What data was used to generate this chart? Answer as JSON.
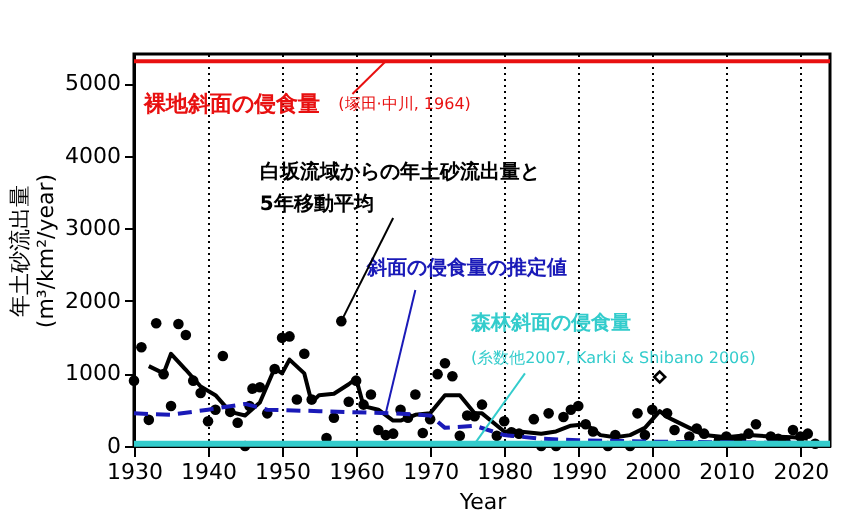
{
  "chart_data": {
    "type": "scatter",
    "xlabel": "Year",
    "ylabel": "年土砂流出量\n(m³/km²/year)",
    "xlim": [
      1930,
      2024
    ],
    "ylim": [
      0,
      5400
    ],
    "xticks": [
      1930,
      1940,
      1950,
      1960,
      1970,
      1980,
      1990,
      2000,
      2010,
      2020
    ],
    "yticks": [
      0,
      1000,
      2000,
      3000,
      4000,
      5000
    ],
    "grid": "x",
    "series": [
      {
        "marker": "circle",
        "color": "#000000",
        "x": [
          1930,
          1931,
          1932,
          1933,
          1934,
          1935,
          1936,
          1937,
          1938,
          1939,
          1940,
          1941,
          1942,
          1943,
          1944,
          1945,
          1945.6,
          1946,
          1947,
          1948,
          1949,
          1950,
          1951,
          1952,
          1953,
          1954,
          1956,
          1957,
          1958,
          1959,
          1960,
          1961,
          1962,
          1963,
          1964,
          1965,
          1966,
          1967,
          1968,
          1969,
          1970,
          1971,
          1972,
          1973,
          1974,
          1975,
          1976,
          1977,
          1979,
          1980,
          1981,
          1982,
          1984,
          1985,
          1986,
          1987,
          1988,
          1989,
          1990,
          1991,
          1992,
          1994,
          1995,
          1997,
          1998,
          1999,
          2000,
          2002,
          2003,
          2005,
          2006,
          2007,
          2009,
          2010,
          2011,
          2012,
          2013,
          2014,
          2016,
          2017,
          2018,
          2019,
          2020,
          2021,
          2022
        ],
        "values": [
          900,
          1360,
          360,
          1690,
          990,
          550,
          1680,
          1530,
          900,
          730,
          340,
          500,
          1240,
          470,
          320,
          0,
          550,
          790,
          810,
          450,
          1060,
          1490,
          1510,
          640,
          1270,
          640,
          110,
          390,
          1720,
          610,
          900,
          570,
          710,
          220,
          150,
          170,
          500,
          390,
          710,
          180,
          370,
          990,
          1140,
          960,
          140,
          420,
          410,
          570,
          140,
          340,
          190,
          170,
          370,
          0,
          450,
          0,
          400,
          500,
          550,
          300,
          200,
          0,
          150,
          0,
          450,
          150,
          500,
          450,
          220,
          130,
          240,
          170,
          80,
          130,
          80,
          100,
          170,
          300,
          130,
          100,
          60,
          220,
          130,
          170,
          30
        ]
      },
      {
        "marker": "diamond",
        "color": "#000000",
        "x": [
          2001
        ],
        "values": [
          950
        ]
      },
      {
        "type": "line",
        "line_style": "solid",
        "color": "#000000",
        "x": [
          1932,
          1934,
          1935,
          1937,
          1939,
          1941,
          1943,
          1945,
          1947,
          1949,
          1950,
          1951,
          1953,
          1954,
          1955,
          1957,
          1959,
          1960,
          1961,
          1963,
          1965,
          1966,
          1968,
          1970,
          1972,
          1974,
          1976,
          1977,
          1980,
          1982,
          1985,
          1987,
          1989,
          1991,
          1993,
          1995,
          1997,
          1999,
          2001,
          2002,
          2003,
          2005,
          2007,
          2010,
          2013,
          2016,
          2019,
          2021
        ],
        "values": [
          1100,
          1000,
          1270,
          1050,
          820,
          700,
          470,
          420,
          600,
          1070,
          1000,
          1190,
          1000,
          600,
          700,
          720,
          850,
          930,
          550,
          500,
          350,
          350,
          430,
          450,
          700,
          700,
          450,
          450,
          200,
          200,
          170,
          200,
          280,
          300,
          150,
          120,
          150,
          250,
          480,
          400,
          350,
          250,
          150,
          120,
          150,
          130,
          120,
          100
        ]
      },
      {
        "type": "line",
        "line_style": "dashed",
        "color": "#1a1ab8",
        "x": [
          1930,
          1935,
          1940,
          1945,
          1948,
          1955,
          1965,
          1970,
          1972,
          1976,
          1980,
          1985,
          1990,
          1995,
          2000,
          2010,
          2022
        ],
        "values": [
          450,
          430,
          500,
          580,
          500,
          480,
          450,
          420,
          250,
          280,
          150,
          100,
          80,
          70,
          60,
          50,
          40
        ]
      },
      {
        "type": "line",
        "line_style": "solid",
        "color": "#33cccc",
        "x": [
          1930,
          2024
        ],
        "values": [
          30,
          30
        ]
      }
    ],
    "ref_lines": [
      {
        "axis": "y",
        "value": 5300,
        "color": "#e81010"
      }
    ],
    "annotations": [
      "裸地斜面の侵食量",
      "(塚田·中川, 1964)",
      {
        "text": "白坂流域からの年土砂流出量と\n5年移動平均",
        "x": 1958,
        "y": 1720
      },
      {
        "text": "斜面の侵食量の推定値",
        "x": 1964,
        "y": 450
      },
      "森林斜面の侵食量",
      {
        "text": "(糸数他2007, Karki & Shibano 2006)",
        "x": 1976,
        "y": 30
      }
    ]
  }
}
